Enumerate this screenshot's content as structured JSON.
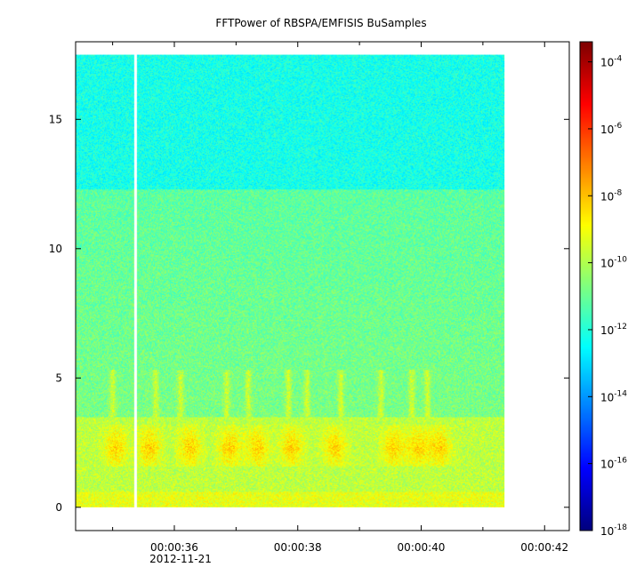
{
  "chart_data": {
    "type": "heatmap",
    "title": "FFTPower of RBSPA/EMFISIS  BuSamples",
    "xlabel": "",
    "ylabel": "",
    "x_ticks": [
      "00:00:36",
      "00:00:38",
      "00:00:40",
      "00:00:42"
    ],
    "x_tick_values": [
      36,
      38,
      40,
      42
    ],
    "x_minor_tick_values": [
      35,
      37,
      39,
      41
    ],
    "x_date_label": "2012-11-21",
    "xlim": [
      34.4,
      42.4
    ],
    "y_ticks": [
      "0",
      "5",
      "10",
      "15"
    ],
    "y_tick_values": [
      0,
      5,
      10,
      15
    ],
    "ylim": [
      -0.9,
      18.0
    ],
    "data_x_range": [
      34.4,
      41.35
    ],
    "data_y_range": [
      0.0,
      17.5
    ],
    "gap_x": 35.37,
    "colorbar": {
      "scale": "log",
      "range_exponents": [
        -18,
        -3.4
      ],
      "tick_exponents": [
        "-4",
        "-6",
        "-8",
        "-10",
        "-12",
        "-14",
        "-16",
        "-18"
      ],
      "tick_base": "10",
      "palette": [
        "#00007f",
        "#0000ff",
        "#007fff",
        "#00ffff",
        "#7fff7f",
        "#ffff00",
        "#ff7f00",
        "#ff0000",
        "#7f0000"
      ]
    },
    "grid": false
  }
}
